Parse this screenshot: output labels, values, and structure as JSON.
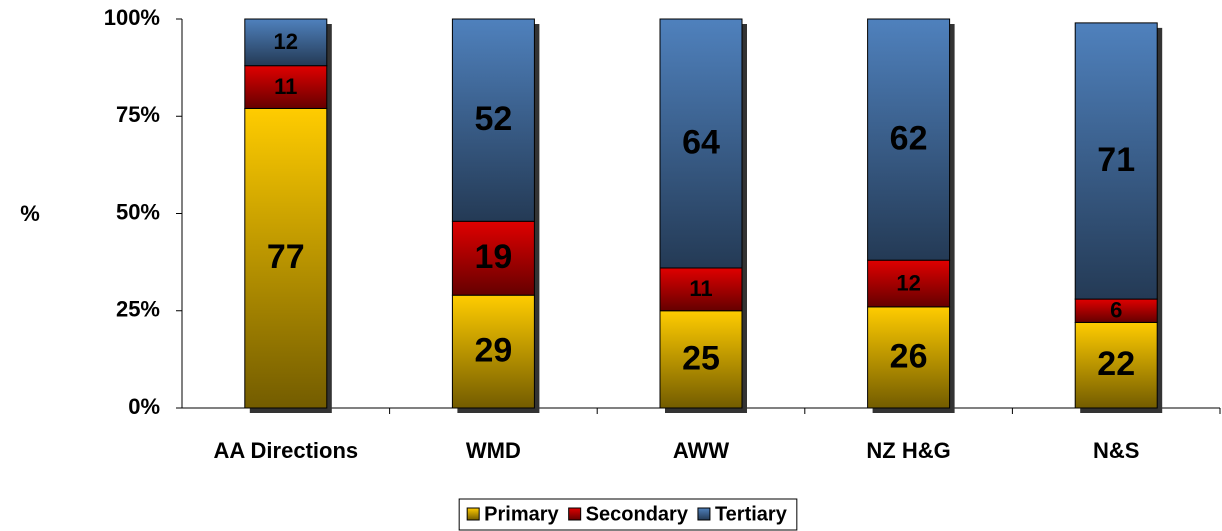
{
  "chart_data": {
    "type": "stacked_bar",
    "y_label": "%",
    "categories": [
      "AA Directions",
      "WMD",
      "AWW",
      "NZ H&G",
      "N&S"
    ],
    "series": [
      {
        "name": "Primary",
        "color": "#ffcc00",
        "values": [
          77,
          29,
          25,
          26,
          22
        ]
      },
      {
        "name": "Secondary",
        "color": "#e00000",
        "values": [
          11,
          19,
          11,
          12,
          6
        ]
      },
      {
        "name": "Tertiary",
        "color": "#4f81bd",
        "values": [
          12,
          52,
          64,
          62,
          71
        ]
      }
    ],
    "ylim": [
      0,
      100
    ],
    "yticks": [
      {
        "value": 0,
        "label": "0%"
      },
      {
        "value": 25,
        "label": "25%"
      },
      {
        "value": 50,
        "label": "50%"
      },
      {
        "value": 75,
        "label": "75%"
      },
      {
        "value": 100,
        "label": "100%"
      }
    ],
    "legend": "bottom"
  }
}
